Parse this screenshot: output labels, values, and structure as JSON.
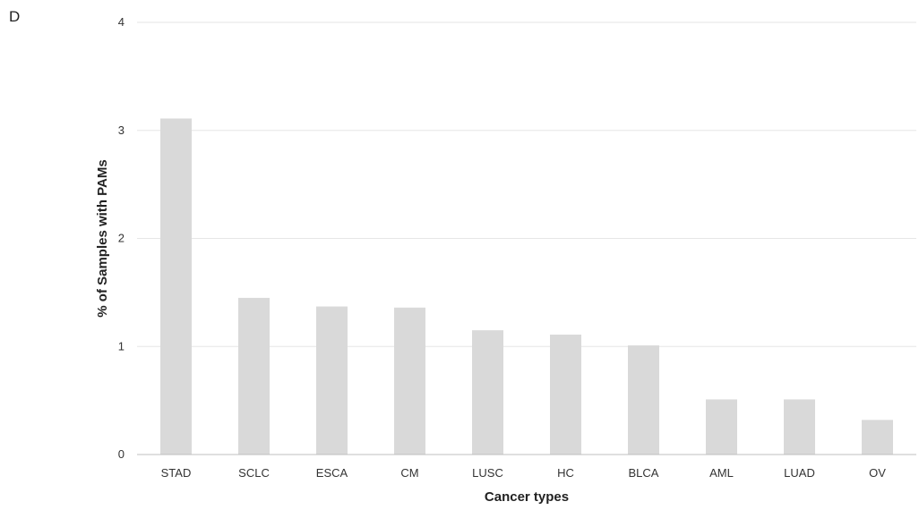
{
  "panel_label": "D",
  "chart_data": {
    "type": "bar",
    "xlabel": "Cancer types",
    "ylabel": "% of Samples with PAMs",
    "ylim": [
      0,
      4
    ],
    "yticks": [
      0,
      1,
      2,
      3,
      4
    ],
    "grid": true,
    "bar_color": "#d9d9d9",
    "grid_color": "#e6e6e6",
    "categories": [
      "STAD",
      "SCLC",
      "ESCA",
      "CM",
      "LUSC",
      "HC",
      "BLCA",
      "AML",
      "LUAD",
      "OV"
    ],
    "values": [
      3.11,
      1.45,
      1.37,
      1.36,
      1.15,
      1.11,
      1.01,
      0.51,
      0.51,
      0.32
    ]
  }
}
